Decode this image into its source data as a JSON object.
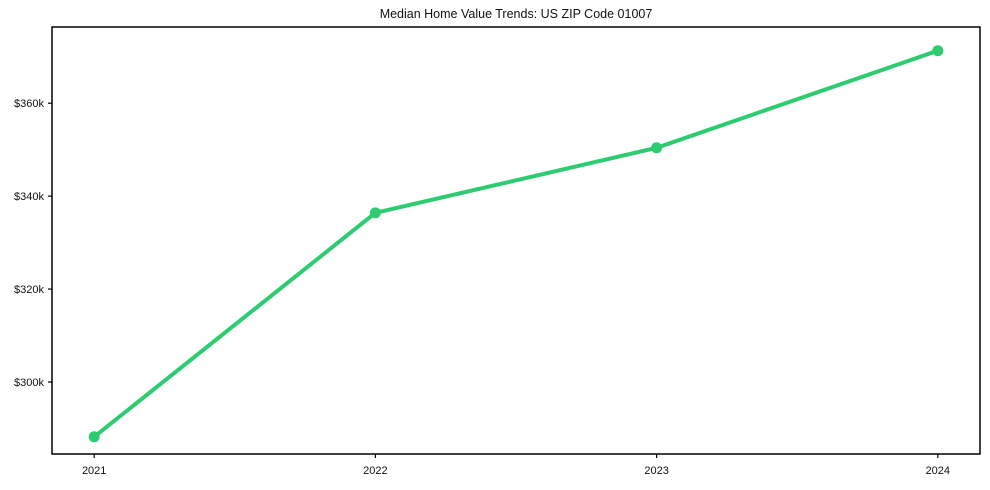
{
  "page": {
    "background": "#ffffff"
  },
  "chart_data": {
    "type": "line",
    "title": "Median Home Value Trends: US ZIP Code 01007",
    "xlabel": "",
    "ylabel": "",
    "x": [
      2021,
      2022,
      2023,
      2024
    ],
    "categories": [
      "2021",
      "2022",
      "2023",
      "2024"
    ],
    "series": [
      {
        "name": "Median home value",
        "values": [
          288200,
          336400,
          350400,
          371300
        ],
        "color": "#2ecc71",
        "line_width": 4,
        "marker": "circle",
        "marker_radius": 5.5
      }
    ],
    "xlim": [
      2020.85,
      2024.15
    ],
    "ylim": [
      284500,
      376400
    ],
    "xticks": [
      {
        "value": 2021,
        "label": "2021"
      },
      {
        "value": 2022,
        "label": "2022"
      },
      {
        "value": 2023,
        "label": "2023"
      },
      {
        "value": 2024,
        "label": "2024"
      }
    ],
    "yticks": [
      {
        "value": 300000,
        "label": "$300k"
      },
      {
        "value": 320000,
        "label": "$320k"
      },
      {
        "value": 340000,
        "label": "$340k"
      },
      {
        "value": 360000,
        "label": "$360k"
      }
    ],
    "grid": false,
    "legend": "none",
    "frame_color": "#000000",
    "tick_color": "#000000",
    "tick_label_color": "#111111",
    "title_color": "#111111"
  }
}
